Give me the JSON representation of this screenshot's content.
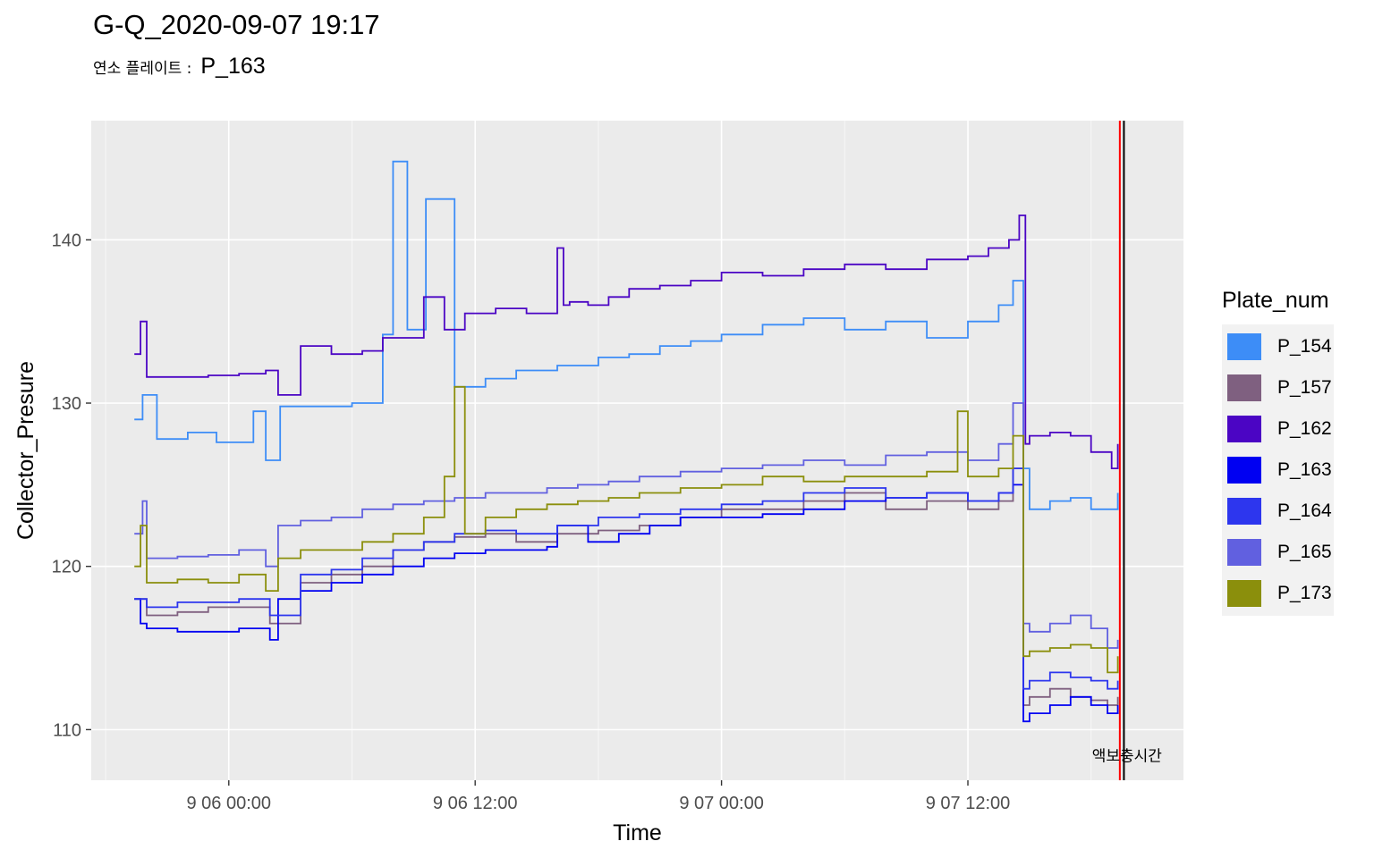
{
  "title": "G-Q_2020-09-07 19:17",
  "subtitle": {
    "label": "연소 플레이트 :",
    "value": "P_163"
  },
  "legend": {
    "title": "Plate_num",
    "items": [
      {
        "label": "P_154",
        "color": "#3d8df7"
      },
      {
        "label": "P_157",
        "color": "#7f6080"
      },
      {
        "label": "P_162",
        "color": "#4b05c4"
      },
      {
        "label": "P_163",
        "color": "#0000f2"
      },
      {
        "label": "P_164",
        "color": "#2d36ee"
      },
      {
        "label": "P_165",
        "color": "#6160e0"
      },
      {
        "label": "P_173",
        "color": "#8b8f0c"
      }
    ]
  },
  "chart_data": {
    "type": "line",
    "xlabel": "Time",
    "ylabel": "Collector_Presure",
    "x_ticks": [
      "9 06 00:00",
      "9 06 12:00",
      "9 07 00:00",
      "9 07 12:00"
    ],
    "y_ticks": [
      110,
      120,
      130,
      140
    ],
    "x_range_hours": [
      -6.7,
      46.5
    ],
    "ylim": [
      106.9,
      147.3
    ],
    "grid": true,
    "legend_position": "right",
    "vlines": [
      {
        "hour": 43.4,
        "color": "#ff0000"
      },
      {
        "hour": 43.6,
        "color": "#000000"
      }
    ],
    "annotation": {
      "text": "액보충시간",
      "hour": 43.4,
      "y": 108.4
    },
    "series": [
      {
        "name": "P_154",
        "color": "#3d8df7",
        "x": [
          -4.6,
          -4.2,
          -3.5,
          -2.0,
          -0.6,
          1.2,
          1.8,
          2.5,
          4.0,
          6.0,
          7.5,
          8.0,
          8.7,
          9.6,
          11.0,
          12.5,
          14.0,
          16.0,
          18.0,
          19.5,
          21.0,
          22.5,
          24.0,
          26.0,
          28.0,
          30.0,
          32.0,
          34.0,
          36.0,
          37.5,
          38.2,
          38.7,
          39.0,
          40.0,
          41.0,
          42.0,
          42.8,
          43.3
        ],
        "y": [
          129.0,
          130.5,
          127.8,
          128.2,
          127.6,
          129.5,
          126.5,
          129.8,
          129.8,
          130.0,
          134.2,
          144.8,
          134.5,
          142.5,
          131.0,
          131.5,
          132.0,
          132.3,
          132.8,
          133.0,
          133.5,
          133.8,
          134.2,
          134.8,
          135.2,
          134.5,
          135.0,
          134.0,
          135.0,
          136.0,
          137.5,
          126.0,
          123.5,
          124.0,
          124.2,
          123.5,
          123.5,
          124.5
        ]
      },
      {
        "name": "P_157",
        "color": "#7f6080",
        "x": [
          -4.6,
          -4.0,
          -2.5,
          -1.0,
          0.5,
          2.0,
          3.5,
          5.0,
          6.5,
          8.0,
          9.5,
          11.0,
          12.5,
          14.0,
          16.0,
          18.0,
          20.0,
          22.0,
          24.0,
          26.0,
          28.0,
          30.0,
          32.0,
          34.0,
          36.0,
          37.5,
          38.2,
          38.7,
          39.0,
          40.0,
          41.0,
          42.0,
          42.8,
          43.3
        ],
        "y": [
          118.0,
          117.0,
          117.2,
          117.5,
          117.5,
          116.5,
          119.0,
          119.5,
          120.0,
          121.0,
          121.5,
          121.8,
          122.0,
          121.5,
          122.0,
          122.2,
          122.5,
          123.0,
          123.5,
          123.5,
          124.0,
          124.5,
          123.5,
          124.0,
          123.5,
          124.0,
          126.0,
          111.5,
          112.0,
          112.5,
          112.0,
          111.8,
          111.5,
          112.0
        ]
      },
      {
        "name": "P_162",
        "color": "#4b05c4",
        "x": [
          -4.6,
          -4.3,
          -4.0,
          -2.5,
          -1.0,
          0.5,
          1.8,
          2.4,
          3.5,
          5.0,
          6.5,
          7.5,
          8.5,
          9.5,
          10.5,
          11.5,
          13.0,
          14.5,
          15.5,
          16.0,
          16.3,
          16.6,
          17.5,
          18.5,
          19.5,
          21.0,
          22.5,
          24.0,
          26.0,
          28.0,
          30.0,
          32.0,
          34.0,
          36.0,
          37.0,
          38.0,
          38.5,
          38.8,
          39.0,
          40.0,
          41.0,
          42.0,
          43.0,
          43.3
        ],
        "y": [
          133.0,
          135.0,
          131.6,
          131.6,
          131.7,
          131.8,
          132.0,
          130.5,
          133.5,
          133.0,
          133.2,
          134.0,
          134.0,
          136.5,
          134.5,
          135.5,
          135.8,
          135.5,
          135.5,
          139.5,
          136.0,
          136.2,
          136.0,
          136.5,
          137.0,
          137.2,
          137.5,
          138.0,
          137.8,
          138.2,
          138.5,
          138.2,
          138.8,
          139.0,
          139.5,
          140.0,
          141.5,
          127.5,
          128.0,
          128.2,
          128.0,
          127.0,
          126.0,
          127.5
        ]
      },
      {
        "name": "P_163",
        "color": "#0000f2",
        "x": [
          -4.6,
          -4.3,
          -4.0,
          -2.5,
          -1.0,
          0.5,
          2.0,
          2.4,
          3.5,
          5.0,
          6.5,
          8.0,
          9.5,
          11.0,
          12.5,
          14.0,
          15.5,
          16.0,
          17.5,
          19.0,
          20.5,
          22.0,
          24.0,
          26.0,
          28.0,
          30.0,
          32.0,
          34.0,
          36.0,
          37.5,
          38.2,
          38.7,
          39.0,
          40.0,
          41.0,
          42.0,
          42.8,
          43.3
        ],
        "y": [
          118.0,
          116.5,
          116.2,
          116.0,
          116.0,
          116.2,
          115.5,
          118.0,
          118.5,
          119.0,
          119.5,
          120.0,
          120.5,
          120.8,
          121.0,
          121.0,
          121.2,
          122.5,
          121.5,
          122.0,
          122.5,
          123.0,
          123.0,
          123.2,
          123.5,
          124.0,
          124.2,
          124.5,
          124.0,
          124.5,
          125.0,
          110.5,
          111.0,
          111.5,
          112.0,
          111.5,
          111.0,
          111.5
        ]
      },
      {
        "name": "P_164",
        "color": "#2d36ee",
        "x": [
          -4.6,
          -4.0,
          -2.5,
          -1.0,
          0.5,
          2.0,
          3.5,
          5.0,
          6.5,
          8.0,
          9.5,
          11.0,
          12.5,
          14.0,
          16.0,
          18.0,
          20.0,
          22.0,
          24.0,
          26.0,
          28.0,
          30.0,
          32.0,
          34.0,
          36.0,
          37.5,
          38.2,
          38.7,
          39.0,
          40.0,
          41.0,
          42.0,
          42.8,
          43.3
        ],
        "y": [
          118.0,
          117.5,
          117.8,
          117.8,
          118.0,
          117.0,
          119.5,
          119.8,
          120.5,
          121.0,
          121.5,
          122.0,
          122.2,
          122.0,
          122.5,
          123.0,
          123.2,
          123.5,
          123.8,
          124.0,
          124.5,
          124.8,
          124.2,
          124.5,
          124.0,
          124.5,
          126.0,
          112.5,
          113.0,
          113.5,
          113.2,
          113.0,
          112.5,
          113.0
        ]
      },
      {
        "name": "P_165",
        "color": "#6160e0",
        "x": [
          -4.6,
          -4.2,
          -4.0,
          -2.5,
          -1.0,
          0.5,
          1.8,
          2.4,
          3.5,
          5.0,
          6.5,
          8.0,
          9.5,
          11.0,
          12.5,
          14.0,
          15.5,
          17.0,
          18.5,
          20.0,
          22.0,
          24.0,
          26.0,
          28.0,
          30.0,
          32.0,
          34.0,
          36.0,
          37.5,
          38.2,
          38.7,
          39.0,
          40.0,
          41.0,
          42.0,
          42.8,
          43.3
        ],
        "y": [
          122.0,
          124.0,
          120.5,
          120.6,
          120.7,
          121.0,
          120.0,
          122.5,
          122.8,
          123.0,
          123.5,
          123.8,
          124.0,
          124.2,
          124.5,
          124.5,
          124.8,
          125.0,
          125.2,
          125.5,
          125.8,
          126.0,
          126.2,
          126.5,
          126.2,
          126.8,
          127.0,
          126.5,
          127.5,
          130.0,
          116.5,
          116.0,
          116.5,
          117.0,
          116.2,
          115.0,
          115.5
        ]
      },
      {
        "name": "P_173",
        "color": "#8b8f0c",
        "x": [
          -4.6,
          -4.3,
          -4.0,
          -2.5,
          -1.0,
          0.5,
          1.8,
          2.4,
          3.5,
          5.0,
          6.5,
          8.0,
          9.5,
          10.5,
          11.0,
          11.5,
          12.5,
          14.0,
          15.5,
          17.0,
          18.5,
          20.0,
          22.0,
          24.0,
          26.0,
          28.0,
          30.0,
          32.0,
          34.0,
          35.5,
          36.0,
          37.5,
          38.2,
          38.7,
          39.0,
          40.0,
          41.0,
          42.0,
          42.8,
          43.3
        ],
        "y": [
          120.0,
          122.5,
          119.0,
          119.2,
          119.0,
          119.5,
          118.5,
          120.5,
          121.0,
          121.0,
          121.5,
          122.0,
          123.0,
          125.5,
          131.0,
          122.0,
          123.0,
          123.5,
          123.8,
          124.0,
          124.2,
          124.5,
          124.8,
          125.0,
          125.5,
          125.2,
          125.5,
          125.5,
          125.8,
          129.5,
          125.5,
          126.0,
          128.0,
          114.5,
          114.8,
          115.0,
          115.2,
          115.0,
          113.5,
          114.5
        ]
      }
    ]
  }
}
